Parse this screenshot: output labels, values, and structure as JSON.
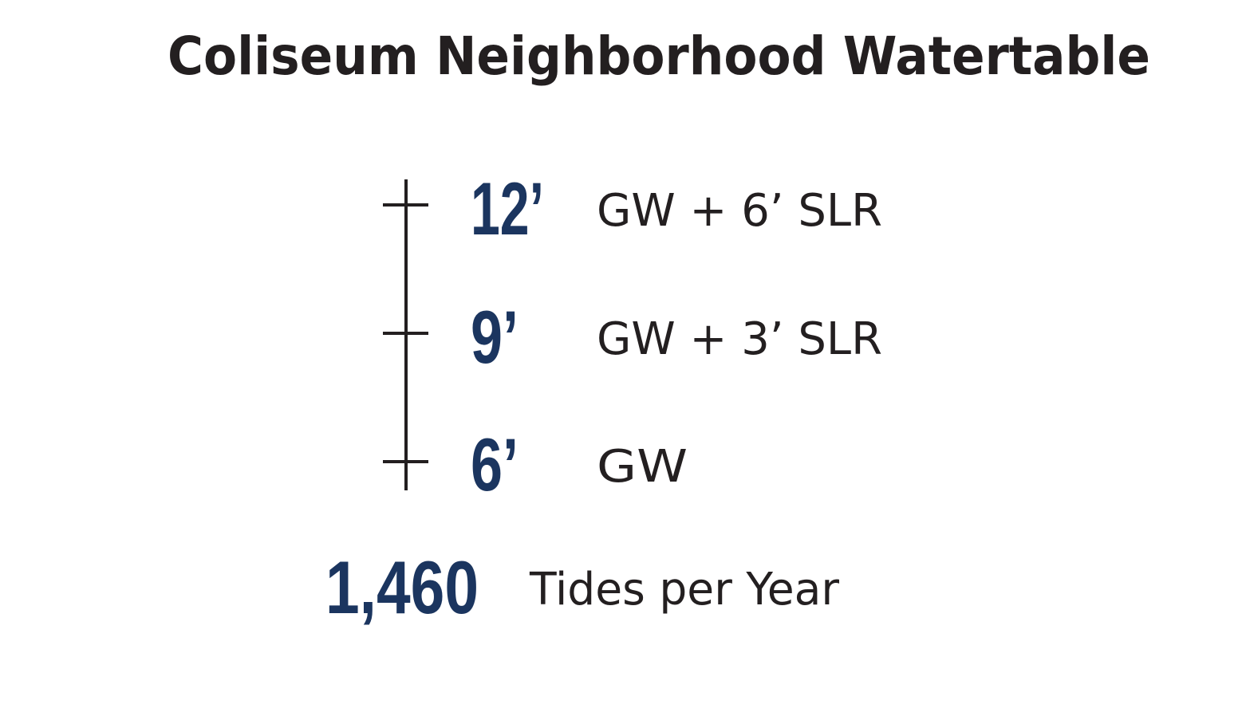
{
  "title": "Coliseum Neighborhood Watertable",
  "levels": [
    {
      "value": "12’",
      "label": "GW + 6’ SLR"
    },
    {
      "value": "9’",
      "label": "GW + 3’ SLR"
    },
    {
      "value": "6’",
      "label": "GW"
    }
  ],
  "stat": {
    "value": "1,460",
    "label": "Tides per Year"
  }
}
